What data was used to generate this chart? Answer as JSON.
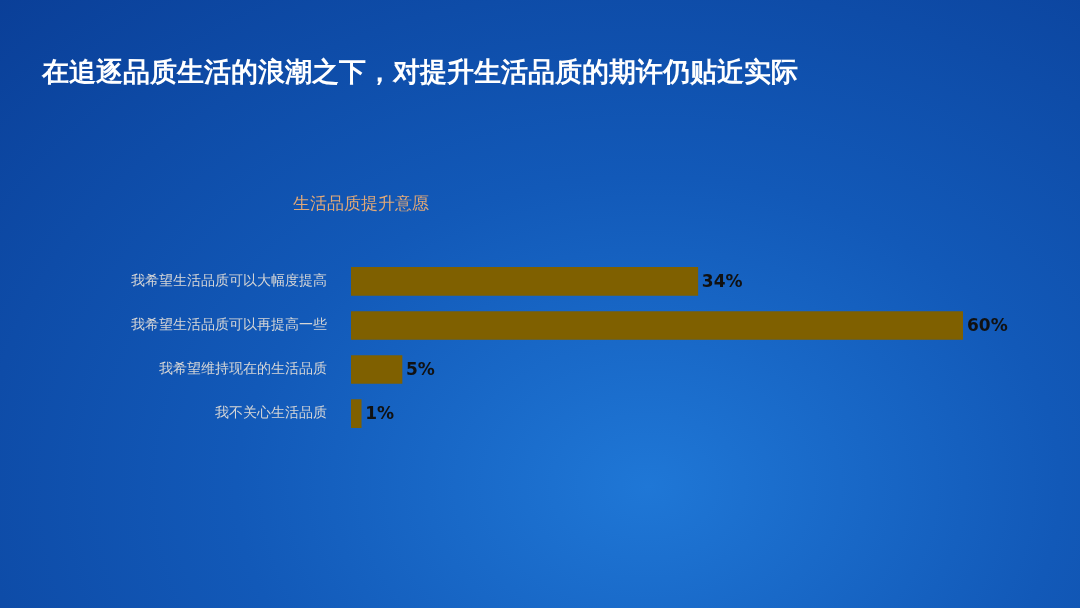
{
  "chart_data": {
    "type": "bar",
    "orientation": "horizontal",
    "title": "在追逐品质生活的浪潮之下，对提升生活品质的期许仍贴近实际",
    "subtitle": "生活品质提升意愿",
    "categories": [
      "我希望生活品质可以大幅度提高",
      "我希望生活品质可以再提高一些",
      "我希望维持现在的生活品质",
      "我不关心生活品质"
    ],
    "values": [
      34,
      60,
      5,
      1
    ],
    "color": "#7f6000",
    "value_labels": [
      "34%",
      "60%",
      "5%",
      "1%"
    ],
    "xlim": [
      0,
      60
    ],
    "tick_labels": "y"
  }
}
